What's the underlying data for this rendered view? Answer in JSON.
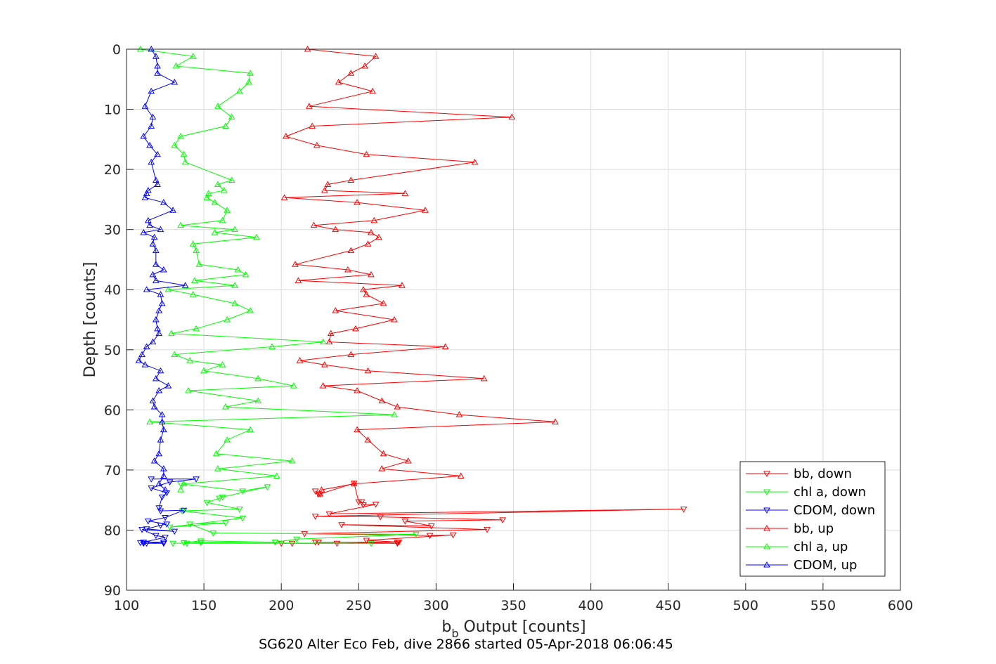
{
  "chart_data": {
    "type": "line",
    "title": "SG620 Alter Eco Feb, dive 2866 started 05-Apr-2018 06:06:45",
    "xlabel_main": "b",
    "xlabel_sub": "b",
    "xlabel_rest": " Output [counts]",
    "ylabel": "Depth [counts]",
    "xlim": [
      100,
      600
    ],
    "ylim": [
      0,
      90
    ],
    "y_reversed": true,
    "grid": true,
    "xticks": [
      100,
      150,
      200,
      250,
      300,
      350,
      400,
      450,
      500,
      550,
      600
    ],
    "yticks": [
      0,
      10,
      20,
      30,
      40,
      50,
      60,
      70,
      80,
      90
    ],
    "legend_position": "bottom-right",
    "series": [
      {
        "name": "bb, down",
        "color": "#ff0000",
        "marker": "triangle-down",
        "x": [
          222,
          224,
          225,
          247,
          250,
          252,
          253,
          261,
          231,
          460,
          222,
          264,
          343,
          280,
          297,
          239,
          333,
          215,
          296,
          311,
          255,
          276,
          275,
          200,
          207,
          236,
          275,
          224,
          222
        ],
        "y": [
          73.5,
          74,
          74,
          72.2,
          75.3,
          75.3,
          75.8,
          75.7,
          77.3,
          76.5,
          77.7,
          77.8,
          78.3,
          78.5,
          79.3,
          79.1,
          79.9,
          80.6,
          80.9,
          80.8,
          81.7,
          82,
          82.2,
          82.2,
          82.2,
          82.2,
          82,
          82,
          82
        ]
      },
      {
        "name": "chl a, down",
        "color": "#00ff00",
        "marker": "triangle-down",
        "x": [
          135,
          175,
          191,
          162,
          160,
          152,
          173,
          136,
          175,
          128,
          164,
          141,
          156,
          287,
          210,
          196,
          148,
          137,
          139,
          258,
          148,
          130
        ],
        "y": [
          72.3,
          73.5,
          72.8,
          74.5,
          74.7,
          75.4,
          76.5,
          76.8,
          78,
          79.5,
          78.8,
          79,
          80.5,
          80.7,
          81.5,
          82,
          81.8,
          82.1,
          82.2,
          82.2,
          82.1,
          82.2
        ]
      },
      {
        "name": "CDOM, down",
        "color": "#0000ff",
        "marker": "triangle-down",
        "x": [
          116,
          145,
          128,
          116,
          126,
          123,
          121,
          122,
          137,
          125,
          114,
          126,
          122,
          113,
          131,
          110,
          119,
          125,
          111,
          124,
          113,
          109,
          111,
          124
        ],
        "y": [
          71.5,
          71.5,
          72,
          73,
          73.8,
          74.5,
          76.3,
          76.8,
          76.7,
          77.9,
          78.5,
          79,
          79.2,
          79.8,
          80.2,
          79.9,
          80.9,
          81.2,
          82,
          82,
          82.2,
          82.1,
          82.2,
          82.2
        ]
      },
      {
        "name": "bb, up",
        "color": "#ff0000",
        "marker": "triangle-up",
        "x": [
          217,
          261,
          254,
          245,
          237,
          259,
          218,
          349,
          220,
          203,
          223,
          255,
          325,
          245,
          230,
          228,
          280,
          202,
          249,
          293,
          260,
          221,
          235,
          258,
          263,
          256,
          245,
          209,
          243,
          258,
          211,
          278,
          253,
          255,
          266,
          235,
          273,
          248,
          232,
          231,
          306,
          245,
          212,
          228,
          256,
          331,
          227,
          249,
          265,
          275,
          315,
          377,
          249,
          256,
          266,
          282,
          265,
          316,
          247,
          226,
          225
        ],
        "y": [
          0,
          1.2,
          2.8,
          4,
          5.5,
          7,
          9.5,
          11.3,
          12.8,
          14.5,
          16,
          17.5,
          18.8,
          21.8,
          22.5,
          23.5,
          24,
          24.7,
          25.5,
          26.8,
          28.5,
          29.3,
          30,
          30.5,
          31.3,
          32.4,
          33.5,
          35.8,
          36.7,
          37.5,
          38.5,
          39.3,
          40,
          40.8,
          42.3,
          43.5,
          45,
          46.5,
          47.3,
          48.7,
          49.5,
          50.8,
          51.8,
          52.5,
          53.5,
          54.8,
          56,
          56.8,
          58.5,
          59.5,
          60.8,
          62,
          63.3,
          65,
          67.3,
          68.5,
          69.8,
          71,
          72.3,
          73.3,
          74
        ]
      },
      {
        "name": "chl a, up",
        "color": "#00ff00",
        "marker": "triangle-up",
        "x": [
          109,
          143,
          132,
          180,
          179,
          173,
          159,
          168,
          164,
          135,
          131,
          137,
          138,
          168,
          159,
          163,
          153,
          152,
          157,
          165,
          162,
          135,
          170,
          157,
          184,
          143,
          145,
          147,
          172,
          177,
          144,
          170,
          127,
          143,
          170,
          180,
          165,
          145,
          129,
          227,
          194,
          131,
          141,
          162,
          150,
          185,
          208,
          140,
          185,
          164,
          273,
          115,
          180,
          165,
          158,
          207,
          159,
          197,
          137,
          135
        ],
        "y": [
          0,
          1.2,
          2.8,
          4,
          5.5,
          7,
          9.5,
          11.3,
          12.8,
          14.5,
          16,
          17.5,
          18.8,
          21.8,
          22.5,
          23.5,
          24,
          24.7,
          25.5,
          26.8,
          28.5,
          29.3,
          30,
          30.5,
          31.3,
          32.4,
          33.5,
          35.8,
          36.7,
          37.5,
          38.5,
          39.3,
          40,
          40.8,
          42.3,
          43.5,
          45,
          46.5,
          47.3,
          48.7,
          49.5,
          50.8,
          51.8,
          52.5,
          53.5,
          54.8,
          56,
          56.8,
          58.5,
          59.5,
          60.8,
          62,
          63.3,
          65,
          67.3,
          68.5,
          69.8,
          71,
          72.3,
          73.3
        ]
      },
      {
        "name": "CDOM, up",
        "color": "#0000ff",
        "marker": "triangle-up",
        "x": [
          116,
          119,
          120,
          120,
          131,
          116,
          112,
          117,
          116,
          111,
          115,
          120,
          116,
          119,
          120,
          114,
          113,
          112,
          124,
          130,
          114,
          115,
          122,
          111,
          118,
          117,
          119,
          119,
          124,
          117,
          119,
          138,
          113,
          122,
          123,
          121,
          119,
          120,
          121,
          117,
          113,
          110,
          108,
          112,
          122,
          119,
          127,
          121,
          117,
          118,
          123,
          123,
          124,
          122,
          121,
          118,
          124,
          124,
          121,
          125
        ],
        "y": [
          0,
          1.2,
          2.8,
          4,
          5.5,
          7,
          9.5,
          11.3,
          12.8,
          14.5,
          16,
          17.5,
          18.8,
          21.8,
          22.5,
          23.5,
          24,
          24.7,
          25.5,
          26.8,
          28.5,
          29.3,
          30,
          30.5,
          31.3,
          32.4,
          33.5,
          35.8,
          36.7,
          37.5,
          38.5,
          39.3,
          40,
          40.8,
          42.3,
          43.5,
          45,
          46.5,
          47.3,
          48.7,
          49.5,
          50.8,
          51.8,
          52.5,
          53.5,
          54.8,
          56,
          56.8,
          58.5,
          59.5,
          60.8,
          62,
          63.3,
          65,
          67.3,
          68.5,
          69.8,
          71,
          72.3,
          73.3
        ]
      }
    ]
  }
}
